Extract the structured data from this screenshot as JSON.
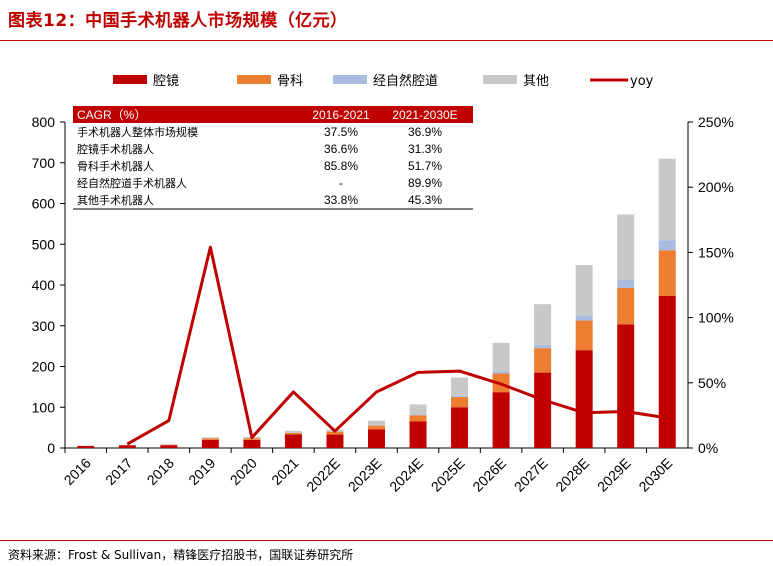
{
  "title": "图表12：中国手术机器人市场规模（亿元）",
  "source": "资料来源：Frost & Sullivan，精锋医疗招股书，国联证券研究所",
  "colors": {
    "accent": "#c00000",
    "laparoscope": "#c00000",
    "orthopedic": "#ed7d31",
    "natural_orifice": "#a9bce0",
    "other": "#c8c8c8",
    "yoy": "#c00000"
  },
  "chart_data": {
    "type": "bar",
    "stacked": true,
    "categories": [
      "2016",
      "2017",
      "2018",
      "2019",
      "2020",
      "2021",
      "2022E",
      "2023E",
      "2024E",
      "2025E",
      "2026E",
      "2027E",
      "2028E",
      "2029E",
      "2030E"
    ],
    "series": [
      {
        "key": "laparoscope",
        "name": "腔镜",
        "values": [
          5,
          7,
          7,
          20,
          20,
          33,
          33,
          46,
          65,
          100,
          137,
          185,
          240,
          303,
          373
        ]
      },
      {
        "key": "orthopedic",
        "name": "骨科",
        "values": [
          0,
          0,
          1,
          4,
          4,
          4,
          7,
          9,
          15,
          25,
          46,
          60,
          73,
          90,
          112
        ]
      },
      {
        "key": "natural_orifice",
        "name": "经自然腔道",
        "values": [
          0,
          0,
          0,
          0,
          0,
          0,
          0,
          0,
          2,
          3,
          5,
          8,
          12,
          20,
          25
        ]
      },
      {
        "key": "other",
        "name": "其他",
        "values": [
          1,
          1,
          1,
          2,
          3,
          5,
          5,
          12,
          25,
          45,
          70,
          100,
          124,
          160,
          200
        ]
      }
    ],
    "line_series": {
      "key": "yoy",
      "name": "yoy",
      "axis": "right",
      "values": [
        null,
        3,
        21,
        154,
        8,
        43,
        13,
        43,
        58,
        59,
        49,
        37,
        27,
        28,
        23
      ]
    },
    "ylim": [
      0,
      800
    ],
    "yticks": [
      0,
      100,
      200,
      300,
      400,
      500,
      600,
      700,
      800
    ],
    "y2lim": [
      0,
      250
    ],
    "y2ticks": [
      "0%",
      "50%",
      "100%",
      "150%",
      "200%",
      "250%"
    ],
    "legend": [
      "腔镜",
      "骨科",
      "经自然腔道",
      "其他",
      "yoy"
    ],
    "table": {
      "header": [
        "CAGR（%）",
        "2016-2021",
        "2021-2030E"
      ],
      "rows": [
        [
          "手术机器人整体市场规模",
          "37.5%",
          "36.9%"
        ],
        [
          "腔镜手术机器人",
          "36.6%",
          "31.3%"
        ],
        [
          "骨科手术机器人",
          "85.8%",
          "51.7%"
        ],
        [
          "经自然腔道手术机器人",
          "-",
          "89.9%"
        ],
        [
          "其他手术机器人",
          "33.8%",
          "45.3%"
        ]
      ]
    }
  }
}
